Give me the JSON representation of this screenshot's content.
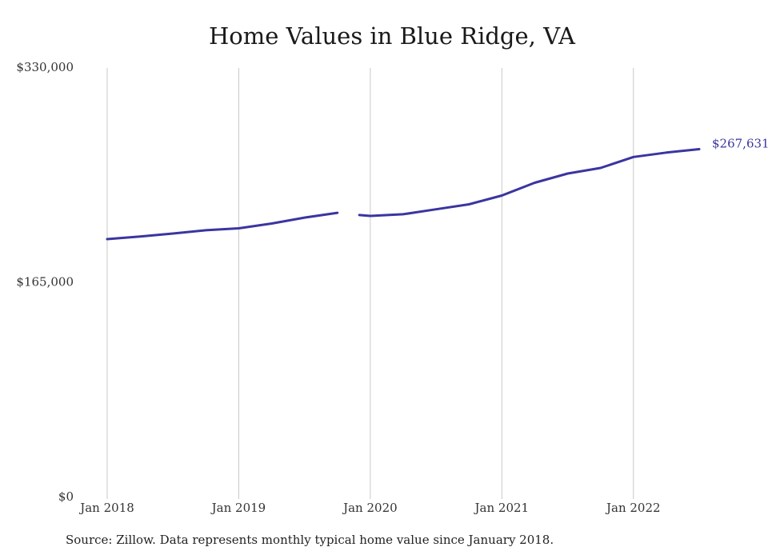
{
  "chart_data": {
    "type": "line",
    "title": "Home Values in Blue Ridge, VA",
    "source": "Source: Zillow. Data represents monthly typical home value since January 2018.",
    "xlabel": "",
    "ylabel": "",
    "ylim": [
      0,
      330000
    ],
    "y_ticks": [
      {
        "value": 330000,
        "label": "$330,000"
      },
      {
        "value": 165000,
        "label": "$165,000"
      },
      {
        "value": 0,
        "label": "$0"
      }
    ],
    "x_ticks": [
      {
        "value": "2018-01",
        "label": "Jan 2018"
      },
      {
        "value": "2019-01",
        "label": "Jan 2019"
      },
      {
        "value": "2020-01",
        "label": "Jan 2020"
      },
      {
        "value": "2021-01",
        "label": "Jan 2021"
      },
      {
        "value": "2022-01",
        "label": "Jan 2022"
      }
    ],
    "grid": "vertical",
    "line_color": "#3b35a0",
    "end_label": "$267,631",
    "series": [
      {
        "segments": [
          [
            {
              "x": "2018-01",
              "y": 198500
            },
            {
              "x": "2018-04",
              "y": 200500
            },
            {
              "x": "2018-07",
              "y": 202800
            },
            {
              "x": "2018-10",
              "y": 205300
            },
            {
              "x": "2019-01",
              "y": 206800
            },
            {
              "x": "2019-04",
              "y": 210500
            },
            {
              "x": "2019-07",
              "y": 215000
            },
            {
              "x": "2019-10",
              "y": 218700
            }
          ],
          [
            {
              "x": "2019-12",
              "y": 217000
            },
            {
              "x": "2020-01",
              "y": 216300
            },
            {
              "x": "2020-04",
              "y": 217600
            },
            {
              "x": "2020-07",
              "y": 221400
            },
            {
              "x": "2020-10",
              "y": 225200
            },
            {
              "x": "2021-01",
              "y": 232000
            },
            {
              "x": "2021-04",
              "y": 241800
            },
            {
              "x": "2021-07",
              "y": 248900
            },
            {
              "x": "2021-10",
              "y": 253200
            },
            {
              "x": "2022-01",
              "y": 261600
            },
            {
              "x": "2022-04",
              "y": 265000
            },
            {
              "x": "2022-07",
              "y": 267631
            }
          ]
        ]
      }
    ]
  }
}
